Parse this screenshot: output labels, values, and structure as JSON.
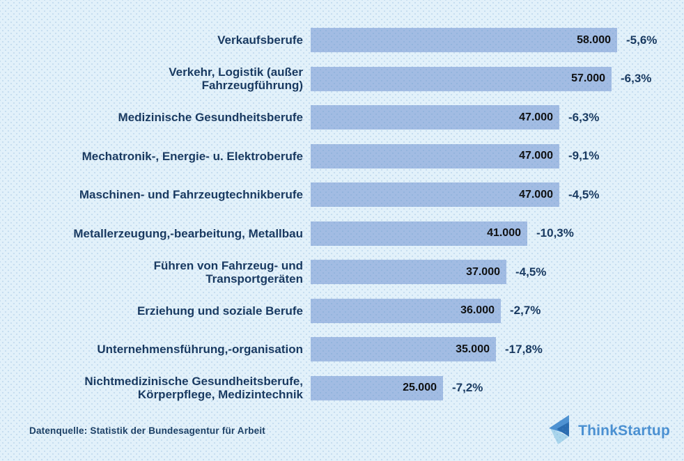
{
  "chart_data": {
    "type": "bar",
    "orientation": "horizontal",
    "title": "",
    "xlabel": "",
    "ylabel": "",
    "xlim": [
      0,
      58000
    ],
    "grid": false,
    "legend": false,
    "categories": [
      "Verkaufsberufe",
      "Verkehr, Logistik (außer\nFahrzeugführung)",
      "Medizinische Gesundheitsberufe",
      "Mechatronik-, Energie- u. Elektroberufe",
      "Maschinen- und Fahrzeugtechnikberufe",
      "Metallerzeugung,-bearbeitung, Metallbau",
      "Führen von Fahrzeug- und\nTransportgeräten",
      "Erziehung und soziale Berufe",
      "Unternehmensführung,-organisation",
      "Nichtmedizinische Gesundheitsberufe,\nKörperpflege, Medizintechnik"
    ],
    "values": [
      58000,
      57000,
      47000,
      47000,
      47000,
      41000,
      37000,
      36000,
      35000,
      25000
    ],
    "value_labels": [
      "58.000",
      "57.000",
      "47.000",
      "47.000",
      "47.000",
      "41.000",
      "37.000",
      "36.000",
      "35.000",
      "25.000"
    ],
    "pct_change_labels": [
      "-5,6%",
      "-6,3%",
      "-6,3%",
      "-9,1%",
      "-4,5%",
      "-10,3%",
      "-4,5%",
      "-2,7%",
      "-17,8%",
      "-7,2%"
    ]
  },
  "footer": {
    "source": "Datenquelle: Statistik der Bundesagentur für Arbeit"
  },
  "branding": {
    "logo_text": "ThinkStartup",
    "logo_icon": "layered-triangles-left-icon"
  },
  "colors": {
    "background": "#e2f1fa",
    "bar": "#a2bce3",
    "category_text": "#17375e",
    "value_text": "#0d0d0d",
    "pct_text": "#17375e",
    "logo_text": "#4a90d2",
    "logo_triangle_light": "#a9d5ec",
    "logo_triangle_medium": "#4e92d2",
    "logo_triangle_dark": "#2a6cb0"
  }
}
